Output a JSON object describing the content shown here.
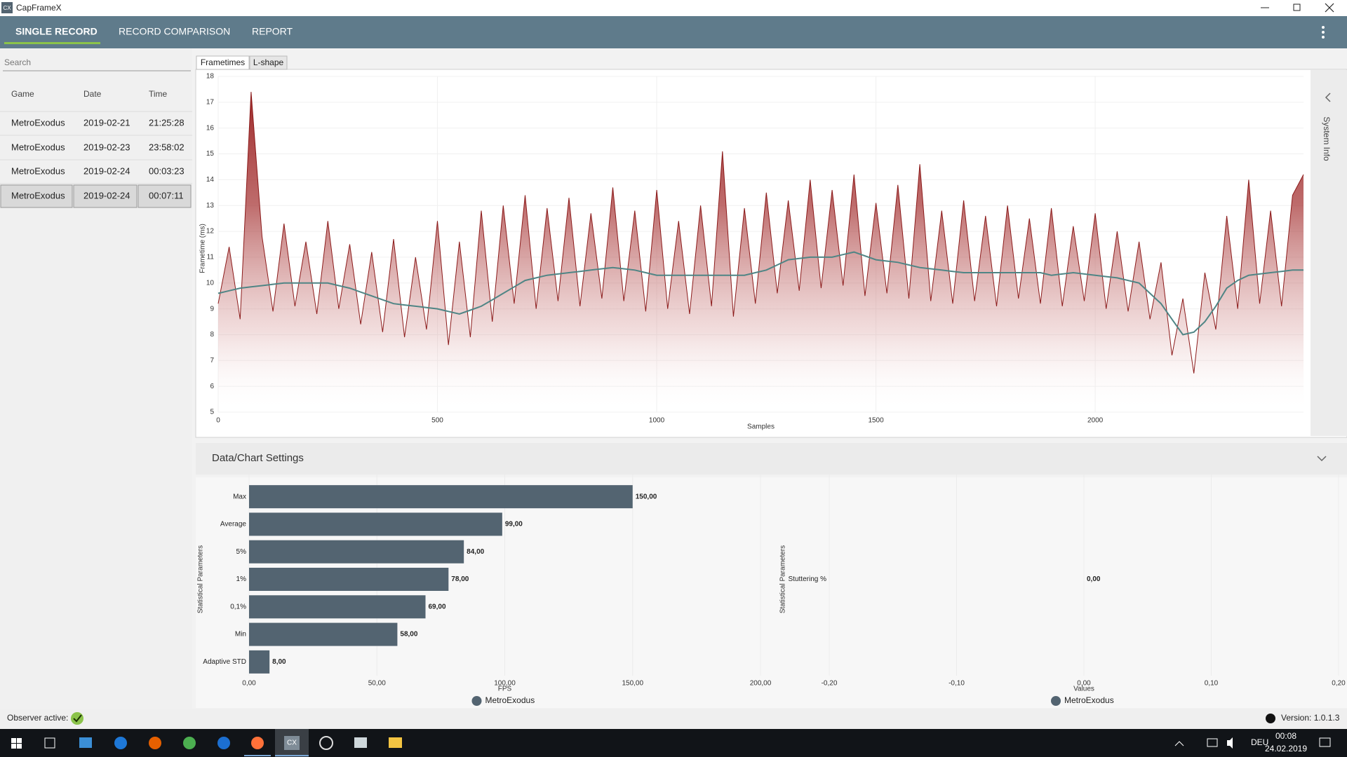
{
  "app": {
    "title": "CapFrameX",
    "icon_text": "CX"
  },
  "nav": {
    "tabs": [
      "SINGLE RECORD",
      "RECORD COMPARISON",
      "REPORT"
    ]
  },
  "search": {
    "placeholder": "Search"
  },
  "table": {
    "headers": [
      "Game",
      "Date",
      "Time"
    ],
    "rows": [
      [
        "MetroExodus",
        "2019-02-21",
        "21:25:28"
      ],
      [
        "MetroExodus",
        "2019-02-23",
        "23:58:02"
      ],
      [
        "MetroExodus",
        "2019-02-24",
        "00:03:23"
      ],
      [
        "MetroExodus",
        "2019-02-24",
        "00:07:11"
      ]
    ]
  },
  "chart_tabs": [
    "Frametimes",
    "L-shape"
  ],
  "side_panel": {
    "label": "System Info"
  },
  "settings_panel": {
    "label": "Data/Chart Settings"
  },
  "chart_data": [
    {
      "type": "line",
      "x_label": "Samples",
      "y_label": "Frametime (ms)",
      "x": [
        0,
        25,
        50,
        75,
        100,
        125,
        150,
        175,
        200,
        225,
        250,
        275,
        300,
        325,
        350,
        375,
        400,
        425,
        450,
        475,
        500,
        525,
        550,
        575,
        600,
        625,
        650,
        675,
        700,
        725,
        750,
        775,
        800,
        825,
        850,
        875,
        900,
        925,
        950,
        975,
        1000,
        1025,
        1050,
        1075,
        1100,
        1125,
        1150,
        1175,
        1200,
        1225,
        1250,
        1275,
        1300,
        1325,
        1350,
        1375,
        1400,
        1425,
        1450,
        1475,
        1500,
        1525,
        1550,
        1575,
        1600,
        1625,
        1650,
        1675,
        1700,
        1725,
        1750,
        1775,
        1800,
        1825,
        1850,
        1875,
        1900,
        1925,
        1950,
        1975,
        2000,
        2025,
        2050,
        2075,
        2100,
        2125,
        2150,
        2175,
        2200,
        2225,
        2250,
        2275,
        2300,
        2325,
        2350,
        2375,
        2400,
        2425,
        2450,
        2475
      ],
      "series": [
        {
          "color": "#8b1a1a",
          "area": true,
          "values": [
            9.2,
            11.4,
            8.6,
            17.4,
            11.8,
            8.9,
            12.3,
            9.1,
            11.6,
            8.8,
            12.4,
            9.0,
            11.5,
            8.4,
            11.2,
            8.1,
            11.7,
            7.9,
            11.0,
            8.2,
            12.4,
            7.6,
            11.6,
            7.9,
            12.8,
            8.5,
            13.0,
            9.2,
            13.4,
            9.0,
            12.9,
            9.3,
            13.3,
            9.1,
            12.7,
            9.4,
            13.7,
            9.3,
            12.8,
            8.9,
            13.6,
            9.0,
            12.4,
            8.8,
            13.0,
            9.1,
            15.1,
            8.7,
            12.9,
            9.2,
            13.5,
            9.6,
            13.2,
            9.7,
            14.0,
            9.8,
            13.6,
            9.9,
            14.2,
            9.5,
            13.1,
            9.6,
            13.8,
            9.4,
            14.6,
            9.3,
            12.8,
            9.2,
            13.2,
            9.3,
            12.6,
            9.1,
            13.0,
            9.4,
            12.5,
            9.2,
            12.9,
            9.1,
            12.2,
            9.3,
            12.7,
            9.0,
            12.0,
            8.9,
            11.6,
            8.6,
            10.8,
            7.2,
            9.4,
            6.5,
            10.4,
            8.2,
            12.6,
            9.0,
            14.0,
            9.2,
            12.8,
            9.1,
            13.4,
            14.2
          ]
        },
        {
          "color": "#4f8585",
          "area": false,
          "values": [
            9.6,
            9.7,
            9.8,
            9.85,
            9.9,
            9.95,
            10.0,
            10.0,
            10.0,
            10.0,
            10.0,
            9.9,
            9.8,
            9.65,
            9.5,
            9.35,
            9.2,
            9.15,
            9.1,
            9.05,
            9.0,
            8.9,
            8.8,
            8.95,
            9.1,
            9.35,
            9.6,
            9.85,
            10.1,
            10.2,
            10.3,
            10.35,
            10.4,
            10.45,
            10.5,
            10.55,
            10.6,
            10.55,
            10.5,
            10.4,
            10.3,
            10.3,
            10.3,
            10.3,
            10.3,
            10.3,
            10.3,
            10.3,
            10.3,
            10.4,
            10.5,
            10.7,
            10.9,
            10.95,
            11.0,
            11.0,
            11.0,
            11.1,
            11.2,
            11.05,
            10.9,
            10.85,
            10.8,
            10.7,
            10.6,
            10.55,
            10.5,
            10.45,
            10.4,
            10.4,
            10.4,
            10.4,
            10.4,
            10.4,
            10.4,
            10.4,
            10.3,
            10.35,
            10.4,
            10.35,
            10.3,
            10.25,
            10.2,
            10.1,
            10.0,
            9.6,
            9.2,
            8.6,
            8.0,
            8.1,
            8.5,
            9.1,
            9.8,
            10.1,
            10.3,
            10.35,
            10.4,
            10.45,
            10.5,
            10.5
          ]
        }
      ],
      "xlim": [
        0,
        2475
      ],
      "ylim": [
        5,
        18
      ],
      "xticks": [
        0,
        500,
        1000,
        1500,
        2000
      ],
      "yticks": [
        5,
        6,
        7,
        8,
        9,
        10,
        11,
        12,
        13,
        14,
        15,
        16,
        17,
        18
      ],
      "grid": true
    },
    {
      "type": "bar",
      "orientation": "horizontal",
      "x_label": "FPS",
      "y_label": "Statistical Parameters",
      "categories": [
        "Max",
        "Average",
        "5%",
        "1%",
        "0,1%",
        "Min",
        "Adaptive STD"
      ],
      "series": [
        {
          "name": "MetroExodus",
          "color": "#536471",
          "values": [
            150,
            99,
            84,
            78,
            69,
            58,
            8
          ],
          "value_labels": [
            "150,00",
            "99,00",
            "84,00",
            "78,00",
            "69,00",
            "58,00",
            "8,00"
          ]
        }
      ],
      "xlim": [
        0,
        200
      ],
      "xticks": [
        {
          "value": 0,
          "label": "0,00"
        },
        {
          "value": 50,
          "label": "50,00"
        },
        {
          "value": 100,
          "label": "100,00"
        },
        {
          "value": 150,
          "label": "150,00"
        },
        {
          "value": 200,
          "label": "200,00"
        }
      ],
      "grid": true,
      "legend": "bottom"
    },
    {
      "type": "bar",
      "orientation": "horizontal",
      "x_label": "Values",
      "y_label": "Statistical Parameters",
      "categories": [
        "Stuttering %"
      ],
      "series": [
        {
          "name": "MetroExodus",
          "color": "#536471",
          "values": [
            0
          ],
          "value_labels": [
            "0,00"
          ]
        }
      ],
      "xlim": [
        -0.2,
        0.2
      ],
      "xticks": [
        {
          "value": -0.2,
          "label": "-0,20"
        },
        {
          "value": -0.1,
          "label": "-0,10"
        },
        {
          "value": 0,
          "label": "0,00"
        },
        {
          "value": 0.1,
          "label": "0,10"
        },
        {
          "value": 0.2,
          "label": "0,20"
        }
      ],
      "grid": true,
      "legend": "bottom"
    }
  ],
  "status": {
    "observer": "Observer active:",
    "version": "Version: 1.0.1.3"
  },
  "taskbar": {
    "language": "DEU",
    "time": "00:08",
    "date": "24.02.2019"
  }
}
